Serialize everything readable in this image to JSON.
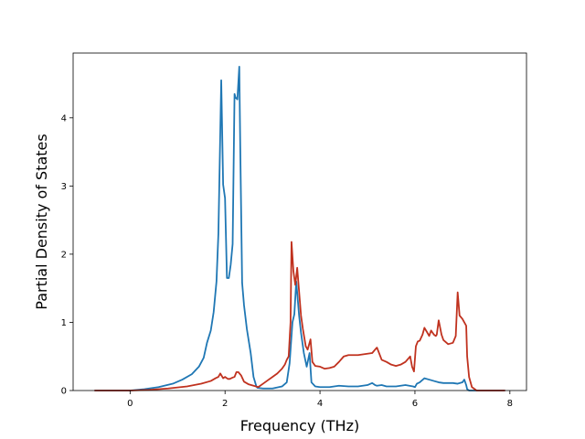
{
  "chart_data": {
    "type": "line",
    "title": "",
    "xlabel": "Frequency (THz)",
    "ylabel": "Partial Density of States",
    "xlim": [
      -1.2,
      8.35
    ],
    "ylim": [
      0,
      4.95
    ],
    "xticks": [
      0,
      2,
      4,
      6,
      8
    ],
    "yticks": [
      0,
      1,
      2,
      3,
      4
    ],
    "grid": false,
    "legend": "none",
    "series": [
      {
        "color": "#1f77b4",
        "x": [
          -0.75,
          0.0,
          0.3,
          0.6,
          0.9,
          1.1,
          1.3,
          1.45,
          1.55,
          1.62,
          1.7,
          1.76,
          1.82,
          1.86,
          1.9,
          1.92,
          1.96,
          2.0,
          2.04,
          2.08,
          2.12,
          2.16,
          2.2,
          2.22,
          2.26,
          2.3,
          2.32,
          2.36,
          2.4,
          2.46,
          2.54,
          2.6,
          2.66,
          2.68,
          2.8,
          3.0,
          3.2,
          3.3,
          3.36,
          3.42,
          3.46,
          3.5,
          3.56,
          3.6,
          3.66,
          3.72,
          3.78,
          3.82,
          3.9,
          4.0,
          4.2,
          4.4,
          4.6,
          4.8,
          5.0,
          5.1,
          5.16,
          5.2,
          5.3,
          5.4,
          5.6,
          5.8,
          5.96,
          6.0,
          6.04,
          6.1,
          6.2,
          6.3,
          6.4,
          6.5,
          6.6,
          6.8,
          6.9,
          7.0,
          7.04,
          7.08,
          7.1,
          7.14,
          7.3,
          7.9
        ],
        "y": [
          0.0,
          0.0,
          0.02,
          0.05,
          0.1,
          0.16,
          0.24,
          0.35,
          0.48,
          0.7,
          0.88,
          1.15,
          1.6,
          2.3,
          3.8,
          4.55,
          3.02,
          2.82,
          1.65,
          1.65,
          1.85,
          2.15,
          4.35,
          4.3,
          4.27,
          4.75,
          3.6,
          1.58,
          1.25,
          0.9,
          0.55,
          0.2,
          0.06,
          0.04,
          0.03,
          0.03,
          0.06,
          0.12,
          0.4,
          1.0,
          1.12,
          1.6,
          1.1,
          0.85,
          0.55,
          0.35,
          0.55,
          0.12,
          0.06,
          0.05,
          0.05,
          0.07,
          0.06,
          0.06,
          0.08,
          0.11,
          0.08,
          0.07,
          0.08,
          0.06,
          0.06,
          0.08,
          0.06,
          0.05,
          0.1,
          0.12,
          0.18,
          0.16,
          0.14,
          0.12,
          0.11,
          0.11,
          0.1,
          0.12,
          0.16,
          0.08,
          0.02,
          0.0,
          0.0,
          0.0
        ]
      },
      {
        "color": "#c0321f",
        "x": [
          -0.75,
          0.0,
          0.4,
          0.8,
          1.2,
          1.5,
          1.7,
          1.8,
          1.86,
          1.9,
          1.96,
          2.0,
          2.06,
          2.1,
          2.16,
          2.2,
          2.24,
          2.28,
          2.34,
          2.4,
          2.5,
          2.6,
          2.7,
          2.8,
          2.9,
          3.0,
          3.1,
          3.2,
          3.26,
          3.3,
          3.34,
          3.38,
          3.4,
          3.44,
          3.48,
          3.52,
          3.56,
          3.6,
          3.64,
          3.7,
          3.74,
          3.8,
          3.84,
          3.9,
          4.0,
          4.1,
          4.2,
          4.3,
          4.4,
          4.5,
          4.6,
          4.8,
          5.0,
          5.1,
          5.16,
          5.2,
          5.3,
          5.4,
          5.5,
          5.6,
          5.7,
          5.8,
          5.9,
          5.94,
          5.98,
          6.02,
          6.06,
          6.1,
          6.16,
          6.2,
          6.26,
          6.3,
          6.34,
          6.4,
          6.44,
          6.46,
          6.5,
          6.56,
          6.6,
          6.7,
          6.8,
          6.86,
          6.9,
          6.94,
          7.0,
          7.04,
          7.08,
          7.1,
          7.14,
          7.2,
          7.3,
          7.9
        ],
        "y": [
          0.0,
          0.0,
          0.01,
          0.03,
          0.06,
          0.1,
          0.14,
          0.18,
          0.2,
          0.25,
          0.18,
          0.2,
          0.17,
          0.17,
          0.19,
          0.2,
          0.27,
          0.27,
          0.22,
          0.13,
          0.09,
          0.07,
          0.05,
          0.1,
          0.15,
          0.2,
          0.25,
          0.32,
          0.38,
          0.45,
          0.5,
          1.0,
          2.18,
          1.75,
          1.55,
          1.8,
          1.45,
          1.1,
          0.9,
          0.65,
          0.6,
          0.75,
          0.42,
          0.36,
          0.35,
          0.32,
          0.33,
          0.35,
          0.42,
          0.5,
          0.52,
          0.52,
          0.54,
          0.55,
          0.6,
          0.63,
          0.45,
          0.42,
          0.38,
          0.36,
          0.38,
          0.42,
          0.5,
          0.35,
          0.28,
          0.65,
          0.72,
          0.73,
          0.82,
          0.92,
          0.85,
          0.8,
          0.88,
          0.82,
          0.8,
          0.82,
          1.03,
          0.82,
          0.74,
          0.68,
          0.7,
          0.8,
          1.44,
          1.1,
          1.05,
          1.0,
          0.95,
          0.5,
          0.2,
          0.05,
          0.0,
          0.0
        ]
      }
    ]
  }
}
